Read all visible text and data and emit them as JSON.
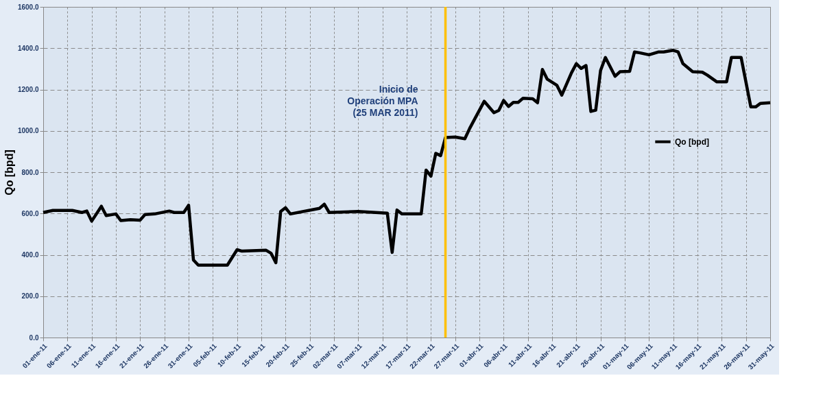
{
  "chart_data": {
    "type": "line",
    "ylabel": "Qo [bpd]",
    "x": [
      "2011-01-01",
      "2011-01-03",
      "2011-01-07",
      "2011-01-09",
      "2011-01-10",
      "2011-01-11",
      "2011-01-13",
      "2011-01-14",
      "2011-01-16",
      "2011-01-17",
      "2011-01-19",
      "2011-01-21",
      "2011-01-22",
      "2011-01-24",
      "2011-01-27",
      "2011-01-28",
      "2011-01-30",
      "2011-01-31",
      "2011-02-01",
      "2011-02-02",
      "2011-02-08",
      "2011-02-10",
      "2011-02-11",
      "2011-02-16",
      "2011-02-17",
      "2011-02-18",
      "2011-02-19",
      "2011-02-20",
      "2011-02-21",
      "2011-02-27",
      "2011-02-28",
      "2011-03-01",
      "2011-03-07",
      "2011-03-13",
      "2011-03-14",
      "2011-03-15",
      "2011-03-16",
      "2011-03-20",
      "2011-03-21",
      "2011-03-22",
      "2011-03-23",
      "2011-03-24",
      "2011-03-25",
      "2011-03-27",
      "2011-03-29",
      "2011-03-30",
      "2011-03-31",
      "2011-04-02",
      "2011-04-04",
      "2011-04-05",
      "2011-04-06",
      "2011-04-07",
      "2011-04-08",
      "2011-04-09",
      "2011-04-10",
      "2011-04-12",
      "2011-04-13",
      "2011-04-14",
      "2011-04-15",
      "2011-04-17",
      "2011-04-18",
      "2011-04-20",
      "2011-04-21",
      "2011-04-22",
      "2011-04-23",
      "2011-04-24",
      "2011-04-25",
      "2011-04-26",
      "2011-04-27",
      "2011-04-29",
      "2011-04-30",
      "2011-05-02",
      "2011-05-03",
      "2011-05-04",
      "2011-05-06",
      "2011-05-08",
      "2011-05-09",
      "2011-05-11",
      "2011-05-12",
      "2011-05-13",
      "2011-05-15",
      "2011-05-17",
      "2011-05-18",
      "2011-05-20",
      "2011-05-22",
      "2011-05-23",
      "2011-05-25",
      "2011-05-27",
      "2011-05-28",
      "2011-05-29",
      "2011-05-31"
    ],
    "series": [
      {
        "name": "Qo [bpd]",
        "color": "#000000",
        "values": [
          605,
          615,
          615,
          605,
          612,
          563,
          635,
          590,
          598,
          566,
          570,
          568,
          595,
          598,
          612,
          605,
          605,
          640,
          375,
          350,
          350,
          425,
          418,
          422,
          408,
          362,
          610,
          628,
          598,
          625,
          645,
          605,
          610,
          602,
          412,
          617,
          598,
          598,
          810,
          781,
          891,
          880,
          968,
          970,
          962,
          1012,
          1056,
          1143,
          1088,
          1099,
          1147,
          1118,
          1138,
          1138,
          1158,
          1155,
          1136,
          1297,
          1250,
          1220,
          1173,
          1281,
          1325,
          1302,
          1316,
          1094,
          1100,
          1292,
          1355,
          1264,
          1286,
          1288,
          1382,
          1378,
          1368,
          1382,
          1382,
          1390,
          1382,
          1325,
          1286,
          1284,
          1270,
          1237,
          1237,
          1355,
          1355,
          1116,
          1116,
          1133,
          1136
        ]
      }
    ],
    "xlim": [
      "2011-01-01",
      "2011-05-31"
    ],
    "xticks": [
      {
        "value": "2011-01-01",
        "label": "01-ene-11"
      },
      {
        "value": "2011-01-06",
        "label": "06-ene-11"
      },
      {
        "value": "2011-01-11",
        "label": "11-ene-11"
      },
      {
        "value": "2011-01-16",
        "label": "16-ene-11"
      },
      {
        "value": "2011-01-21",
        "label": "21-ene-11"
      },
      {
        "value": "2011-01-26",
        "label": "26-ene-11"
      },
      {
        "value": "2011-01-31",
        "label": "31-ene-11"
      },
      {
        "value": "2011-02-05",
        "label": "05-feb-11"
      },
      {
        "value": "2011-02-10",
        "label": "10-feb-11"
      },
      {
        "value": "2011-02-15",
        "label": "15-feb-11"
      },
      {
        "value": "2011-02-20",
        "label": "20-feb-11"
      },
      {
        "value": "2011-02-25",
        "label": "25-feb-11"
      },
      {
        "value": "2011-03-02",
        "label": "02-mar-11"
      },
      {
        "value": "2011-03-07",
        "label": "07-mar-11"
      },
      {
        "value": "2011-03-12",
        "label": "12-mar-11"
      },
      {
        "value": "2011-03-17",
        "label": "17-mar-11"
      },
      {
        "value": "2011-03-22",
        "label": "22-mar-11"
      },
      {
        "value": "2011-03-27",
        "label": "27-mar-11"
      },
      {
        "value": "2011-04-01",
        "label": "01-abr-11"
      },
      {
        "value": "2011-04-06",
        "label": "06-abr-11"
      },
      {
        "value": "2011-04-11",
        "label": "11-abr-11"
      },
      {
        "value": "2011-04-16",
        "label": "16-abr-11"
      },
      {
        "value": "2011-04-21",
        "label": "21-abr-11"
      },
      {
        "value": "2011-04-26",
        "label": "26-abr-11"
      },
      {
        "value": "2011-05-01",
        "label": "01-may-11"
      },
      {
        "value": "2011-05-06",
        "label": "06-may-11"
      },
      {
        "value": "2011-05-11",
        "label": "11-may-11"
      },
      {
        "value": "2011-05-16",
        "label": "16-may-11"
      },
      {
        "value": "2011-05-21",
        "label": "21-may-11"
      },
      {
        "value": "2011-05-26",
        "label": "26-may-11"
      },
      {
        "value": "2011-05-31",
        "label": "31-may-11"
      }
    ],
    "ylim": [
      0,
      1600
    ],
    "yticks": [
      {
        "value": 0,
        "label": "0.0"
      },
      {
        "value": 200,
        "label": "200.0"
      },
      {
        "value": 400,
        "label": "400.0"
      },
      {
        "value": 600,
        "label": "600.0"
      },
      {
        "value": 800,
        "label": "800.0"
      },
      {
        "value": 1000,
        "label": "1000.0"
      },
      {
        "value": 1200,
        "label": "1200.0"
      },
      {
        "value": 1400,
        "label": "1400.0"
      },
      {
        "value": 1600,
        "label": "1600.0"
      }
    ],
    "ref_lines": [
      {
        "axis": "x",
        "value": "2011-03-25",
        "color": "#ffc000",
        "line_style": "solid"
      }
    ],
    "annotations": [
      {
        "text": "Inicio de\nOperación MPA\n(25 MAR 2011)",
        "x": "2011-03-25",
        "y": 1200
      }
    ],
    "grid": true,
    "legend": "right",
    "line_style": "solid",
    "marker": "none"
  }
}
